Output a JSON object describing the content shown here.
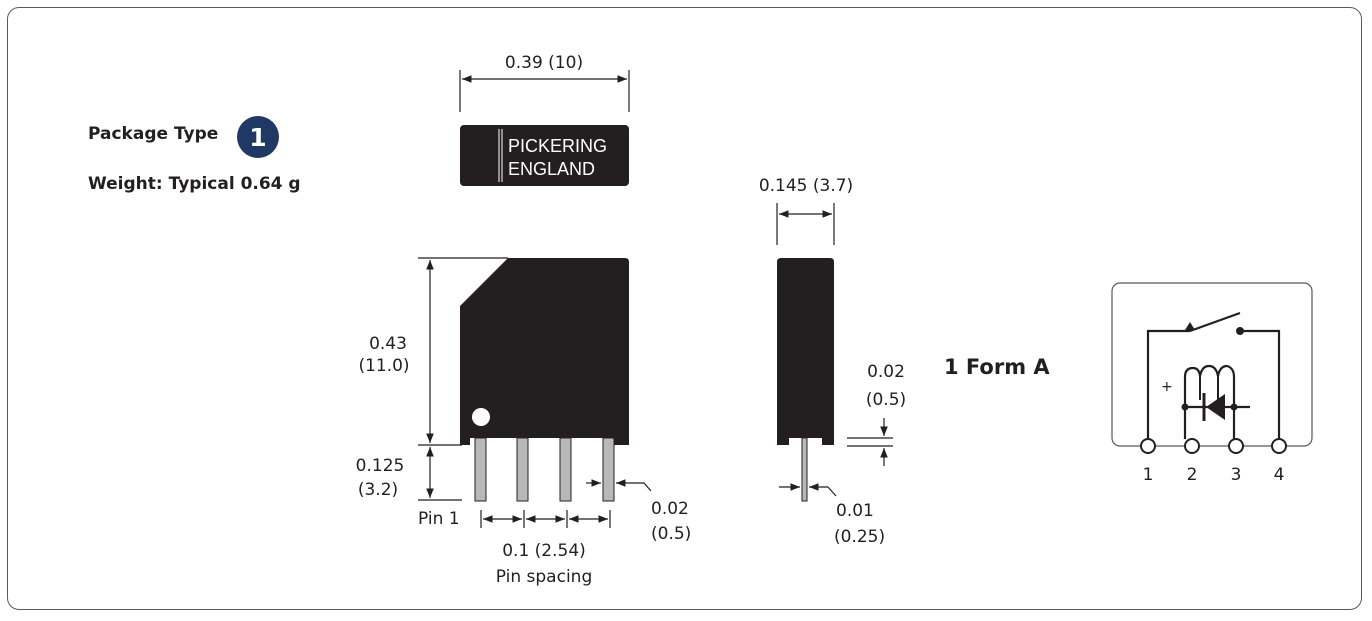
{
  "header": {
    "package_type_label": "Package Type",
    "package_number": "1",
    "weight_label": "Weight: Typical 0.64 g"
  },
  "top_view": {
    "width_dim": "0.39 (10)",
    "marking_line1": "PICKERING",
    "marking_line2": "ENGLAND"
  },
  "front_view": {
    "height_dim_line1": "0.43",
    "height_dim_line2": "(11.0)",
    "pin_length_line1": "0.125",
    "pin_length_line2": "(3.2)",
    "pin1_label": "Pin 1",
    "pin_width_line1": "0.02",
    "pin_width_line2": "(0.5)",
    "pin_spacing_line1": "0.1 (2.54)",
    "pin_spacing_line2": "Pin spacing"
  },
  "side_view": {
    "thickness_dim": "0.145 (3.7)",
    "standoff_line1": "0.02",
    "standoff_line2": "(0.5)",
    "pin_thickness_line1": "0.01",
    "pin_thickness_line2": "(0.25)"
  },
  "schematic": {
    "form_label": "1 Form A",
    "plus_sign": "+",
    "pin_numbers": [
      "1",
      "2",
      "3",
      "4"
    ]
  },
  "colors": {
    "body": "#231f20",
    "pin": "#b8b8b8",
    "badge": "#1f3864",
    "border": "#58595b"
  }
}
